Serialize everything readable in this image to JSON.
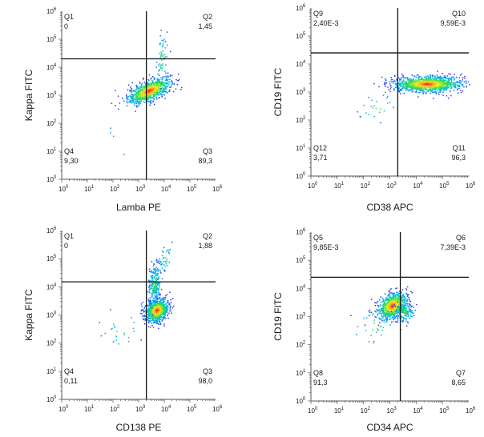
{
  "chart_data": [
    {
      "type": "scatter",
      "title": "",
      "xlabel": "Lamba PE",
      "ylabel": "Kappa FITC",
      "scale": "log10",
      "xlim": [
        1,
        1000000
      ],
      "ylim": [
        1,
        1000000
      ],
      "x_ticks": [
        "10",
        "10",
        "10",
        "10",
        "10",
        "10",
        "10"
      ],
      "x_tick_exponents": [
        "0",
        "1",
        "2",
        "3",
        "4",
        "5",
        "6"
      ],
      "y_ticks": [
        "10",
        "10",
        "10",
        "10",
        "10",
        "10",
        "10"
      ],
      "y_tick_exponents": [
        "0",
        "1",
        "2",
        "3",
        "4",
        "5",
        "6"
      ],
      "gate": {
        "x": 2000,
        "y": 20000
      },
      "quadrants": [
        {
          "name": "Q1",
          "value": "0",
          "position": "top-left"
        },
        {
          "name": "Q2",
          "value": "1,45",
          "position": "top-right"
        },
        {
          "name": "Q3",
          "value": "89,3",
          "position": "bottom-right"
        },
        {
          "name": "Q4",
          "value": "9,30",
          "position": "bottom-left"
        }
      ],
      "populations": [
        {
          "center": [
            2500,
            1500
          ],
          "spread": [
            0.42,
            0.18
          ],
          "count": 900,
          "tilt": 0.35
        },
        {
          "center": [
            8000,
            20000
          ],
          "spread": [
            0.12,
            0.45
          ],
          "count": 60,
          "tilt": 0.8
        },
        {
          "center": [
            200,
            30
          ],
          "spread": [
            0.3,
            0.3
          ],
          "count": 4,
          "tilt": 0
        }
      ]
    },
    {
      "type": "scatter",
      "title": "",
      "xlabel": "CD38 APC",
      "ylabel": "CD19 FITC",
      "scale": "log10",
      "xlim": [
        1,
        1000000
      ],
      "ylim": [
        1,
        1000000
      ],
      "x_ticks": [
        "10",
        "10",
        "10",
        "10",
        "10",
        "10",
        "10"
      ],
      "x_tick_exponents": [
        "0",
        "1",
        "2",
        "3",
        "4",
        "5",
        "6"
      ],
      "y_ticks": [
        "10",
        "10",
        "10",
        "10",
        "10",
        "10",
        "10"
      ],
      "y_tick_exponents": [
        "0",
        "1",
        "2",
        "3",
        "4",
        "5",
        "6"
      ],
      "gate": {
        "x": 2000,
        "y": 25000
      },
      "quadrants": [
        {
          "name": "Q9",
          "value": "2,40E-3",
          "position": "top-left"
        },
        {
          "name": "Q10",
          "value": "9,59E-3",
          "position": "top-right"
        },
        {
          "name": "Q11",
          "value": "96,3",
          "position": "bottom-right"
        },
        {
          "name": "Q12",
          "value": "3,71",
          "position": "bottom-left"
        }
      ],
      "populations": [
        {
          "center": [
            25000,
            2000
          ],
          "spread": [
            0.65,
            0.14
          ],
          "count": 1200,
          "tilt": 0
        },
        {
          "center": [
            300,
            300
          ],
          "spread": [
            0.35,
            0.25
          ],
          "count": 25,
          "tilt": 0.3
        }
      ]
    },
    {
      "type": "scatter",
      "title": "",
      "xlabel": "CD138 PE",
      "ylabel": "Kappa FITC",
      "scale": "log10",
      "xlim": [
        1,
        1000000
      ],
      "ylim": [
        1,
        1000000
      ],
      "x_ticks": [
        "10",
        "10",
        "10",
        "10",
        "10",
        "10",
        "10"
      ],
      "x_tick_exponents": [
        "0",
        "1",
        "2",
        "3",
        "4",
        "5",
        "6"
      ],
      "y_ticks": [
        "10",
        "10",
        "10",
        "10",
        "10",
        "10",
        "10"
      ],
      "y_tick_exponents": [
        "0",
        "1",
        "2",
        "3",
        "4",
        "5",
        "6"
      ],
      "gate": {
        "x": 2000,
        "y": 15000
      },
      "quadrants": [
        {
          "name": "Q1",
          "value": "0",
          "position": "top-left"
        },
        {
          "name": "Q2",
          "value": "1,88",
          "position": "top-right"
        },
        {
          "name": "Q3",
          "value": "98,0",
          "position": "bottom-right"
        },
        {
          "name": "Q4",
          "value": "0,11",
          "position": "bottom-left"
        }
      ],
      "populations": [
        {
          "center": [
            5000,
            1500
          ],
          "spread": [
            0.22,
            0.2
          ],
          "count": 900,
          "tilt": 0.2
        },
        {
          "center": [
            4000,
            12000
          ],
          "spread": [
            0.12,
            0.35
          ],
          "count": 250,
          "tilt": 0.6
        },
        {
          "center": [
            10000,
            100000
          ],
          "spread": [
            0.12,
            0.25
          ],
          "count": 40,
          "tilt": 0.7
        },
        {
          "center": [
            200,
            300
          ],
          "spread": [
            0.35,
            0.35
          ],
          "count": 25,
          "tilt": 0
        }
      ]
    },
    {
      "type": "scatter",
      "title": "",
      "xlabel": "CD34 APC",
      "ylabel": "CD19 FITC",
      "scale": "log10",
      "xlim": [
        1,
        1000000
      ],
      "ylim": [
        1,
        1000000
      ],
      "x_ticks": [
        "10",
        "10",
        "10",
        "10",
        "10",
        "10",
        "10"
      ],
      "x_tick_exponents": [
        "0",
        "1",
        "2",
        "3",
        "4",
        "5",
        "6"
      ],
      "y_ticks": [
        "10",
        "10",
        "10",
        "10",
        "10",
        "10",
        "10"
      ],
      "y_tick_exponents": [
        "0",
        "1",
        "2",
        "3",
        "4",
        "5",
        "6"
      ],
      "gate": {
        "x": 2500,
        "y": 25000
      },
      "quadrants": [
        {
          "name": "Q5",
          "value": "9,85E-3",
          "position": "top-left"
        },
        {
          "name": "Q6",
          "value": "7,39E-3",
          "position": "top-right"
        },
        {
          "name": "Q7",
          "value": "8,65",
          "position": "bottom-right"
        },
        {
          "name": "Q8",
          "value": "91,3",
          "position": "bottom-left"
        }
      ],
      "populations": [
        {
          "center": [
            1200,
            2500
          ],
          "spread": [
            0.28,
            0.22
          ],
          "count": 900,
          "tilt": 0.3
        },
        {
          "center": [
            3500,
            1500
          ],
          "spread": [
            0.18,
            0.2
          ],
          "count": 150,
          "tilt": 0
        },
        {
          "center": [
            300,
            500
          ],
          "spread": [
            0.45,
            0.35
          ],
          "count": 40,
          "tilt": 0
        }
      ]
    }
  ]
}
